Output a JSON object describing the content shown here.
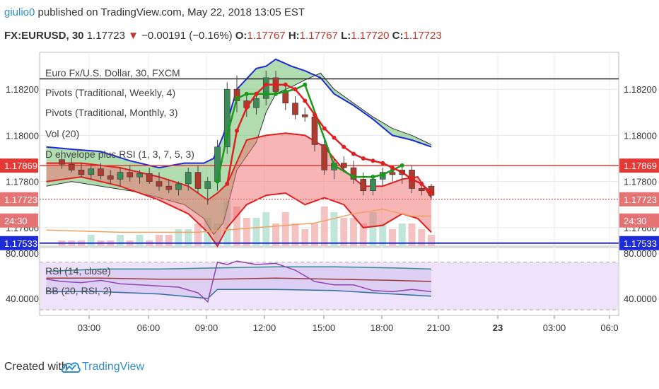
{
  "header": {
    "username": "giulio0",
    "published_text": "published on TradingView.com, May 22, 2018 13:05 EST",
    "symbol": "FX:EURUSD, 30",
    "last": "1.17723",
    "change_arrow": "▼",
    "change": "−0.00191 (−0.16%)",
    "o_label": "O:",
    "o_value": "1.17767",
    "h_label": "H:",
    "h_value": "1.17767",
    "l_label": "L:",
    "l_value": "1.17720",
    "c_label": "C:",
    "c_value": "1.17723"
  },
  "legend": {
    "title": "Euro Fx/U.S. Dollar, 30, FXCM",
    "items": [
      "Pivots (Traditional, Weekly, 4)",
      "Pivots (Traditional, Monthly, 3)",
      "Vol (20)",
      "D envelope plus RSI (1, 3, 7, 5, 3)"
    ]
  },
  "rsi_legend": [
    "RSI (14, close)",
    "BB (20, RSI, 2)"
  ],
  "badges": {
    "left": [
      {
        "text": "1.17869",
        "color": "#e53935"
      },
      {
        "text": "1.17723",
        "color": "#e57373"
      },
      {
        "text": "24:30",
        "color": "#e57373"
      },
      {
        "text": "1.17533",
        "color": "#1e2bd6"
      }
    ],
    "right": [
      {
        "text": "1.17869",
        "color": "#e53935"
      },
      {
        "text": "1.17723",
        "color": "#e57373"
      },
      {
        "text": "24:30",
        "color": "#e57373"
      },
      {
        "text": "1.17533",
        "color": "#1e2bd6"
      }
    ]
  },
  "footer": {
    "created_with": "Created with",
    "brand": "TradingView",
    "logo_icon": "tradingview-cloud-icon"
  },
  "chart_data": {
    "type": "candlestick",
    "price_ticks": [
      "1.18200",
      "1.18000",
      "1.17800",
      "1.17600"
    ],
    "price_tick_values": [
      1.182,
      1.18,
      1.178,
      1.176
    ],
    "rsi_ticks": [
      "80.0000",
      "40.0000"
    ],
    "rsi_tick_values": [
      80,
      40
    ],
    "x_ticks": [
      "03:00",
      "06:00",
      "09:00",
      "12:00",
      "15:00",
      "18:00",
      "21:00",
      "23",
      "03:00",
      "06:0"
    ],
    "price_range": [
      1.1752,
      1.1836
    ],
    "rsi_range": [
      25,
      85
    ],
    "horizontal_lines": [
      {
        "price": 1.18245,
        "color": "#222222"
      },
      {
        "price": 1.17869,
        "color": "#e53935"
      },
      {
        "price": 1.17723,
        "color": "#e57373",
        "style": "dotted"
      },
      {
        "price": 1.17533,
        "color": "#1e2bd6"
      }
    ],
    "candles": [
      {
        "t": 1.0,
        "o": 1.17895,
        "h": 1.17935,
        "l": 1.17855,
        "c": 1.17875
      },
      {
        "t": 1.5,
        "o": 1.17875,
        "h": 1.17905,
        "l": 1.1784,
        "c": 1.1785
      },
      {
        "t": 2.0,
        "o": 1.1785,
        "h": 1.1788,
        "l": 1.1782,
        "c": 1.1783
      },
      {
        "t": 2.5,
        "o": 1.1783,
        "h": 1.1787,
        "l": 1.1781,
        "c": 1.17855
      },
      {
        "t": 3.0,
        "o": 1.17855,
        "h": 1.1788,
        "l": 1.1781,
        "c": 1.17825
      },
      {
        "t": 3.5,
        "o": 1.17825,
        "h": 1.1785,
        "l": 1.1779,
        "c": 1.1781
      },
      {
        "t": 4.0,
        "o": 1.1781,
        "h": 1.1786,
        "l": 1.1778,
        "c": 1.1784
      },
      {
        "t": 4.5,
        "o": 1.1784,
        "h": 1.1787,
        "l": 1.178,
        "c": 1.1782
      },
      {
        "t": 5.0,
        "o": 1.1782,
        "h": 1.1785,
        "l": 1.1779,
        "c": 1.17835
      },
      {
        "t": 5.5,
        "o": 1.17835,
        "h": 1.1786,
        "l": 1.1779,
        "c": 1.178
      },
      {
        "t": 6.0,
        "o": 1.178,
        "h": 1.1784,
        "l": 1.1776,
        "c": 1.1778
      },
      {
        "t": 6.5,
        "o": 1.1778,
        "h": 1.1781,
        "l": 1.1775,
        "c": 1.17765
      },
      {
        "t": 7.0,
        "o": 1.17765,
        "h": 1.178,
        "l": 1.1774,
        "c": 1.1779
      },
      {
        "t": 7.5,
        "o": 1.1779,
        "h": 1.1786,
        "l": 1.1776,
        "c": 1.1784
      },
      {
        "t": 8.0,
        "o": 1.1784,
        "h": 1.1787,
        "l": 1.1775,
        "c": 1.1777
      },
      {
        "t": 8.5,
        "o": 1.1777,
        "h": 1.1782,
        "l": 1.177,
        "c": 1.178
      },
      {
        "t": 9.0,
        "o": 1.178,
        "h": 1.1798,
        "l": 1.1776,
        "c": 1.1795
      },
      {
        "t": 9.5,
        "o": 1.1795,
        "h": 1.1823,
        "l": 1.1792,
        "c": 1.182
      },
      {
        "t": 10.0,
        "o": 1.182,
        "h": 1.1826,
        "l": 1.181,
        "c": 1.1815
      },
      {
        "t": 10.5,
        "o": 1.1815,
        "h": 1.1818,
        "l": 1.1808,
        "c": 1.1812
      },
      {
        "t": 11.0,
        "o": 1.1812,
        "h": 1.1819,
        "l": 1.1809,
        "c": 1.1816
      },
      {
        "t": 11.5,
        "o": 1.1816,
        "h": 1.1828,
        "l": 1.1813,
        "c": 1.1825
      },
      {
        "t": 12.0,
        "o": 1.1825,
        "h": 1.1828,
        "l": 1.1817,
        "c": 1.1819
      },
      {
        "t": 12.5,
        "o": 1.1819,
        "h": 1.1822,
        "l": 1.1811,
        "c": 1.1814
      },
      {
        "t": 13.0,
        "o": 1.1814,
        "h": 1.1817,
        "l": 1.1807,
        "c": 1.1809
      },
      {
        "t": 13.5,
        "o": 1.1809,
        "h": 1.1812,
        "l": 1.1806,
        "c": 1.1808
      },
      {
        "t": 14.0,
        "o": 1.1808,
        "h": 1.181,
        "l": 1.1793,
        "c": 1.1796
      },
      {
        "t": 14.5,
        "o": 1.1796,
        "h": 1.1799,
        "l": 1.1783,
        "c": 1.1785
      },
      {
        "t": 15.0,
        "o": 1.1785,
        "h": 1.179,
        "l": 1.1781,
        "c": 1.1788
      },
      {
        "t": 15.5,
        "o": 1.1788,
        "h": 1.1791,
        "l": 1.1784,
        "c": 1.1786
      },
      {
        "t": 16.0,
        "o": 1.1786,
        "h": 1.1789,
        "l": 1.1779,
        "c": 1.1781
      },
      {
        "t": 16.5,
        "o": 1.1781,
        "h": 1.1784,
        "l": 1.1774,
        "c": 1.1776
      },
      {
        "t": 17.0,
        "o": 1.1776,
        "h": 1.1783,
        "l": 1.1774,
        "c": 1.1781
      },
      {
        "t": 17.5,
        "o": 1.1781,
        "h": 1.1786,
        "l": 1.1778,
        "c": 1.1784
      },
      {
        "t": 18.0,
        "o": 1.1784,
        "h": 1.1786,
        "l": 1.178,
        "c": 1.1783
      },
      {
        "t": 18.5,
        "o": 1.1783,
        "h": 1.1786,
        "l": 1.1779,
        "c": 1.1785
      },
      {
        "t": 19.0,
        "o": 1.1785,
        "h": 1.1787,
        "l": 1.1775,
        "c": 1.1777
      },
      {
        "t": 19.5,
        "o": 1.1777,
        "h": 1.1779,
        "l": 1.1774,
        "c": 1.1776
      },
      {
        "t": 20.0,
        "o": 1.1778,
        "h": 1.1779,
        "l": 1.1772,
        "c": 1.1774
      }
    ],
    "env_upper": [
      [
        0.2,
        1.1795
      ],
      [
        1.5,
        1.1794
      ],
      [
        3,
        1.1793
      ],
      [
        4.5,
        1.1789
      ],
      [
        6,
        1.1786
      ],
      [
        7.3,
        1.1788
      ],
      [
        8.3,
        1.1788
      ],
      [
        8.8,
        1.179
      ],
      [
        9.3,
        1.18
      ],
      [
        10,
        1.182
      ],
      [
        11,
        1.1829
      ],
      [
        11.5,
        1.183
      ],
      [
        12,
        1.1833
      ],
      [
        12.8,
        1.183
      ],
      [
        13.5,
        1.1828
      ],
      [
        14.3,
        1.1825
      ],
      [
        15,
        1.1818
      ],
      [
        16,
        1.1813
      ],
      [
        17,
        1.1807
      ],
      [
        18,
        1.18
      ],
      [
        19,
        1.1798
      ],
      [
        20,
        1.1795
      ]
    ],
    "env_lower": [
      [
        0.2,
        1.1778
      ],
      [
        1.5,
        1.178
      ],
      [
        3,
        1.1778
      ],
      [
        4.5,
        1.1776
      ],
      [
        6,
        1.1773
      ],
      [
        7.3,
        1.177
      ],
      [
        8.3,
        1.1764
      ],
      [
        8.8,
        1.1757
      ],
      [
        9.3,
        1.1762
      ],
      [
        10,
        1.1785
      ],
      [
        11,
        1.1797
      ],
      [
        11.5,
        1.181
      ],
      [
        12,
        1.1818
      ],
      [
        12.8,
        1.1821
      ],
      [
        13.5,
        1.1824
      ],
      [
        14.3,
        1.1827
      ],
      [
        15,
        1.182
      ],
      [
        16,
        1.1814
      ],
      [
        17,
        1.1808
      ],
      [
        18,
        1.1803
      ],
      [
        19,
        1.18
      ],
      [
        20,
        1.1796
      ]
    ],
    "env2_upper": [
      [
        0.2,
        1.1788
      ],
      [
        2,
        1.1788
      ],
      [
        4,
        1.1786
      ],
      [
        6,
        1.1782
      ],
      [
        7.5,
        1.1778
      ],
      [
        8.5,
        1.1772
      ],
      [
        9,
        1.1775
      ],
      [
        9.5,
        1.1779
      ],
      [
        10.5,
        1.1798
      ],
      [
        11.5,
        1.18
      ],
      [
        12.5,
        1.1801
      ],
      [
        13.5,
        1.18
      ],
      [
        14.5,
        1.1795
      ],
      [
        15.5,
        1.1785
      ],
      [
        16.5,
        1.1778
      ],
      [
        17.5,
        1.1778
      ],
      [
        18.5,
        1.1781
      ],
      [
        19.3,
        1.1782
      ],
      [
        20,
        1.1773
      ]
    ],
    "env2_lower": [
      [
        0.2,
        1.178
      ],
      [
        2,
        1.1782
      ],
      [
        4,
        1.1778
      ],
      [
        6,
        1.1772
      ],
      [
        7.5,
        1.1766
      ],
      [
        8.5,
        1.1758
      ],
      [
        9,
        1.1752
      ],
      [
        9.5,
        1.176
      ],
      [
        10.5,
        1.177
      ],
      [
        11.5,
        1.1774
      ],
      [
        12.5,
        1.1775
      ],
      [
        13.5,
        1.177
      ],
      [
        14.5,
        1.1773
      ],
      [
        15.5,
        1.177
      ],
      [
        16.5,
        1.176
      ],
      [
        17.5,
        1.1761
      ],
      [
        18.5,
        1.1766
      ],
      [
        19.3,
        1.1764
      ],
      [
        20,
        1.1758
      ]
    ],
    "green_line": [
      [
        9,
        1.178
      ],
      [
        9.5,
        1.18
      ],
      [
        10,
        1.1816
      ],
      [
        10.5,
        1.1818
      ],
      [
        11,
        1.1818
      ],
      [
        11.5,
        1.1818
      ],
      [
        12,
        1.1818
      ],
      [
        12.5,
        1.1819
      ],
      [
        13,
        1.182
      ],
      [
        13.5,
        1.1822
      ],
      [
        15,
        1.1787
      ],
      [
        16,
        1.1782
      ],
      [
        17,
        1.1782
      ],
      [
        17.5,
        1.1783
      ],
      [
        18,
        1.1785
      ],
      [
        18.5,
        1.1787
      ]
    ],
    "red_line": [
      [
        9.5,
        1.1779
      ],
      [
        10,
        1.1802
      ],
      [
        10.5,
        1.1812
      ],
      [
        11,
        1.1818
      ],
      [
        11.5,
        1.1822
      ],
      [
        12,
        1.1822
      ],
      [
        12.5,
        1.1822
      ],
      [
        13,
        1.182
      ],
      [
        13.5,
        1.1815
      ],
      [
        14,
        1.1809
      ],
      [
        14.5,
        1.1803
      ],
      [
        15,
        1.1799
      ],
      [
        15.5,
        1.1795
      ],
      [
        16,
        1.1792
      ],
      [
        16.5,
        1.179
      ],
      [
        17,
        1.1789
      ],
      [
        17.5,
        1.1788
      ],
      [
        18,
        1.1786
      ],
      [
        18.5,
        1.1784
      ],
      [
        19,
        1.1781
      ],
      [
        19.5,
        1.1779
      ],
      [
        20,
        1.1775
      ]
    ],
    "ma_orange": [
      [
        0.2,
        1.1759
      ],
      [
        4,
        1.1758
      ],
      [
        8,
        1.1758
      ],
      [
        11,
        1.176
      ],
      [
        14,
        1.1762
      ],
      [
        16,
        1.1766
      ],
      [
        17.5,
        1.1768
      ],
      [
        19,
        1.1765
      ],
      [
        20,
        1.1765
      ]
    ],
    "volume": [
      1,
      1,
      1,
      2,
      1,
      1,
      2,
      1,
      2,
      1,
      2,
      2,
      3,
      3,
      4,
      5,
      4,
      8,
      7,
      5,
      5,
      6,
      4,
      6,
      4,
      3,
      4,
      7,
      6,
      5,
      5,
      4,
      6,
      4,
      3,
      4,
      4,
      3,
      2
    ],
    "rsi": [
      [
        0.2,
        57
      ],
      [
        1,
        55
      ],
      [
        2,
        54
      ],
      [
        3,
        56
      ],
      [
        4,
        53
      ],
      [
        5,
        52
      ],
      [
        6,
        51
      ],
      [
        7,
        50
      ],
      [
        8,
        45
      ],
      [
        8.5,
        37
      ],
      [
        9,
        72
      ],
      [
        9.5,
        70
      ],
      [
        10,
        73
      ],
      [
        11,
        70
      ],
      [
        12,
        71
      ],
      [
        13,
        65
      ],
      [
        14,
        55
      ],
      [
        15,
        52
      ],
      [
        16,
        52
      ],
      [
        17,
        47
      ],
      [
        18,
        46
      ],
      [
        19,
        48
      ],
      [
        20,
        46
      ]
    ],
    "rsi_bb_upper": [
      [
        0.2,
        64
      ],
      [
        3,
        66
      ],
      [
        6,
        66
      ],
      [
        9,
        67
      ],
      [
        12,
        68
      ],
      [
        15,
        68
      ],
      [
        18,
        67
      ],
      [
        20,
        66
      ]
    ],
    "rsi_bb_mid": [
      [
        0.2,
        58
      ],
      [
        3,
        58
      ],
      [
        6,
        57
      ],
      [
        9,
        57
      ],
      [
        12,
        58
      ],
      [
        15,
        57
      ],
      [
        18,
        56
      ],
      [
        20,
        55
      ]
    ],
    "rsi_bb_lower": [
      [
        0.2,
        46
      ],
      [
        3,
        46
      ],
      [
        6,
        44
      ],
      [
        8.5,
        40
      ],
      [
        9,
        48
      ],
      [
        12,
        48
      ],
      [
        15,
        47
      ],
      [
        18,
        44
      ],
      [
        20,
        42
      ]
    ]
  }
}
